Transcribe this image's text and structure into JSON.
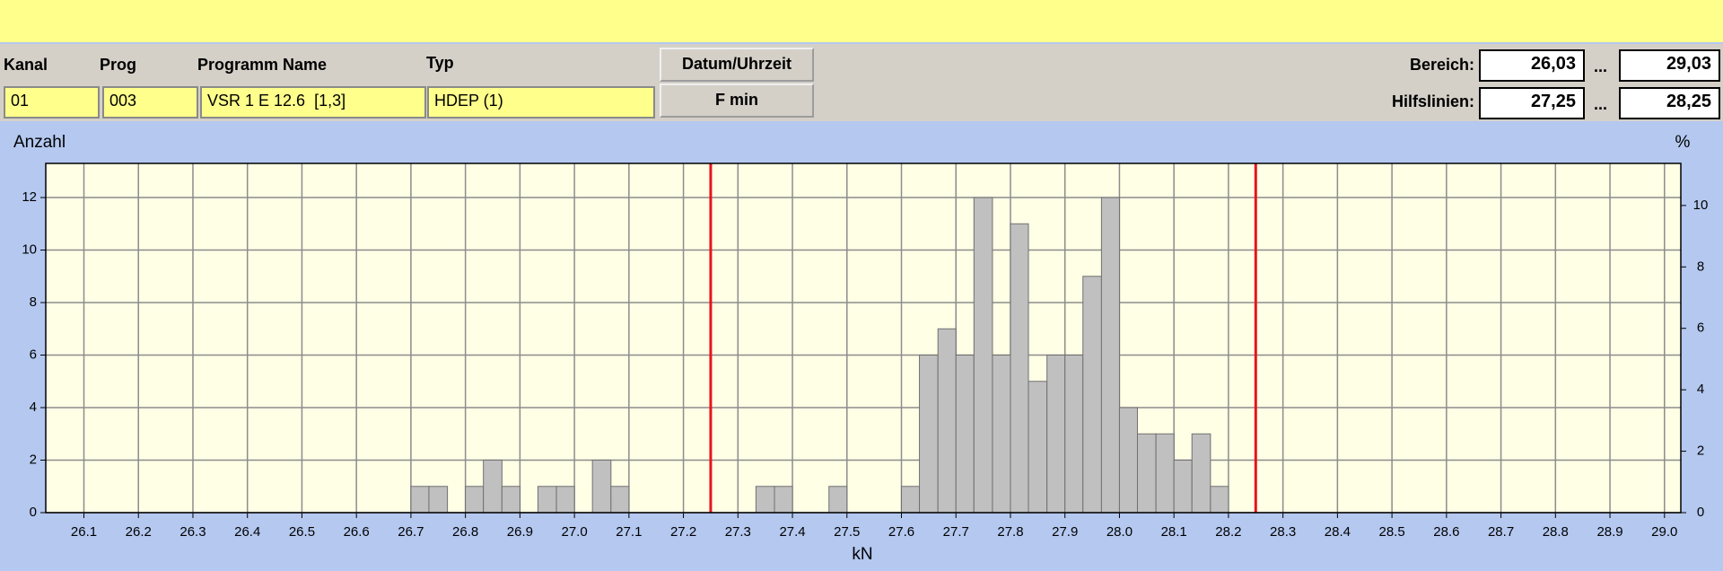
{
  "header": {
    "columns": [
      "Kanal",
      "Prog",
      "Programm Name",
      "Typ"
    ],
    "values": [
      "01",
      "003",
      "VSR 1 E 12.6  [1,3]",
      "HDEP (1)"
    ],
    "buttons": [
      "Datum/Uhrzeit",
      "F min"
    ],
    "range_label": "Bereich:",
    "range": [
      "26,03",
      "29,03"
    ],
    "guides_label": "Hilfslinien:",
    "guides": [
      "27,25",
      "28,25"
    ],
    "separator": "..."
  },
  "chart_data": {
    "type": "histogram",
    "y_label": "Anzahl",
    "y2_label": "%",
    "x_label": "kN",
    "bins": [
      26.7,
      26.733,
      26.767,
      26.8,
      26.833,
      26.867,
      26.9,
      26.933,
      26.967,
      27.0,
      27.033,
      27.067,
      27.1,
      27.133,
      27.167,
      27.2,
      27.233,
      27.267,
      27.3,
      27.333,
      27.367,
      27.4,
      27.433,
      27.467,
      27.5,
      27.533,
      27.567,
      27.6,
      27.633,
      27.667,
      27.7,
      27.733,
      27.767,
      27.8,
      27.833,
      27.867,
      27.9,
      27.933,
      27.967,
      28.0,
      28.033,
      28.067,
      28.1,
      28.133,
      28.167,
      28.2
    ],
    "values": [
      1,
      1,
      0,
      1,
      2,
      1,
      0,
      1,
      1,
      0,
      2,
      1,
      0,
      0,
      0,
      0,
      0,
      0,
      0,
      1,
      1,
      0,
      0,
      1,
      0,
      0,
      0,
      1,
      6,
      7,
      6,
      12,
      6,
      11,
      5,
      6,
      6,
      9,
      12,
      4,
      3,
      3,
      2,
      3,
      1
    ],
    "color": "#c0c0c0",
    "xlim": [
      26.03,
      29.03
    ],
    "xticks": [
      26.1,
      26.2,
      26.3,
      26.4,
      26.5,
      26.6,
      26.7,
      26.8,
      26.9,
      {
        "value": 27,
        "label": "27.0"
      },
      27.1,
      27.2,
      27.3,
      27.4,
      27.5,
      27.6,
      27.7,
      27.8,
      27.9,
      {
        "value": 28,
        "label": "28.0"
      },
      28.1,
      28.2,
      28.3,
      28.4,
      28.5,
      28.6,
      28.7,
      28.8,
      28.9,
      {
        "value": 29,
        "label": "29.0"
      }
    ],
    "ylim": [
      0,
      13.3
    ],
    "yticks": [
      0,
      2,
      4,
      6,
      8,
      10,
      12
    ],
    "y2lim": [
      0,
      11.37
    ],
    "y2ticks": [
      0,
      2,
      4,
      6,
      8,
      10
    ],
    "reference_lines": [
      27.25,
      28.25
    ],
    "reference_color": "#e8141c",
    "grid": true
  }
}
